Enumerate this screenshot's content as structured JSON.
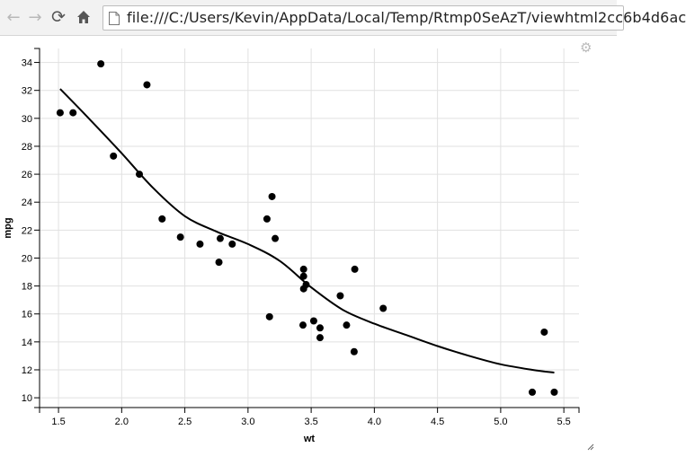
{
  "browser": {
    "url": "file:///C:/Users/Kevin/AppData/Local/Temp/Rtmp0SeAzT/viewhtml2cc6b4d6ac",
    "icons": {
      "back": "back-arrow-icon",
      "forward": "forward-arrow-icon",
      "reload": "reload-icon",
      "home": "home-icon",
      "page": "page-icon",
      "settings": "gear-icon",
      "resize": "resize-grip-icon"
    }
  },
  "chart_data": {
    "type": "scatter",
    "xlabel": "wt",
    "ylabel": "mpg",
    "xlim": [
      1.35,
      5.62
    ],
    "ylim": [
      9.3,
      35.0
    ],
    "x_ticks": [
      "1.5",
      "2.0",
      "2.5",
      "3.0",
      "3.5",
      "4.0",
      "4.5",
      "5.0",
      "5.5"
    ],
    "y_ticks": [
      "10",
      "12",
      "14",
      "16",
      "18",
      "20",
      "22",
      "24",
      "26",
      "28",
      "30",
      "32",
      "34"
    ],
    "grid": true,
    "points": [
      {
        "x": 2.62,
        "y": 21.0
      },
      {
        "x": 2.875,
        "y": 21.0
      },
      {
        "x": 2.32,
        "y": 22.8
      },
      {
        "x": 3.215,
        "y": 21.4
      },
      {
        "x": 3.44,
        "y": 18.7
      },
      {
        "x": 3.46,
        "y": 18.1
      },
      {
        "x": 3.57,
        "y": 14.3
      },
      {
        "x": 3.19,
        "y": 24.4
      },
      {
        "x": 3.15,
        "y": 22.8
      },
      {
        "x": 3.44,
        "y": 19.2
      },
      {
        "x": 3.44,
        "y": 17.8
      },
      {
        "x": 4.07,
        "y": 16.4
      },
      {
        "x": 3.73,
        "y": 17.3
      },
      {
        "x": 3.78,
        "y": 15.2
      },
      {
        "x": 5.25,
        "y": 10.4
      },
      {
        "x": 5.424,
        "y": 10.4
      },
      {
        "x": 5.345,
        "y": 14.7
      },
      {
        "x": 2.2,
        "y": 32.4
      },
      {
        "x": 1.615,
        "y": 30.4
      },
      {
        "x": 1.835,
        "y": 33.9
      },
      {
        "x": 2.465,
        "y": 21.5
      },
      {
        "x": 3.52,
        "y": 15.5
      },
      {
        "x": 3.435,
        "y": 15.2
      },
      {
        "x": 3.84,
        "y": 13.3
      },
      {
        "x": 3.845,
        "y": 19.2
      },
      {
        "x": 1.935,
        "y": 27.3
      },
      {
        "x": 2.14,
        "y": 26.0
      },
      {
        "x": 1.513,
        "y": 30.4
      },
      {
        "x": 3.17,
        "y": 15.8
      },
      {
        "x": 2.77,
        "y": 19.7
      },
      {
        "x": 3.57,
        "y": 15.0
      },
      {
        "x": 2.78,
        "y": 21.4
      }
    ],
    "smooth_line": [
      {
        "x": 1.513,
        "y": 32.1
      },
      {
        "x": 1.75,
        "y": 29.9
      },
      {
        "x": 2.0,
        "y": 27.5
      },
      {
        "x": 2.25,
        "y": 25.0
      },
      {
        "x": 2.5,
        "y": 23.0
      },
      {
        "x": 2.75,
        "y": 21.9
      },
      {
        "x": 3.0,
        "y": 21.0
      },
      {
        "x": 3.25,
        "y": 19.8
      },
      {
        "x": 3.5,
        "y": 17.9
      },
      {
        "x": 3.75,
        "y": 16.3
      },
      {
        "x": 4.0,
        "y": 15.3
      },
      {
        "x": 4.25,
        "y": 14.5
      },
      {
        "x": 4.5,
        "y": 13.7
      },
      {
        "x": 4.75,
        "y": 13.0
      },
      {
        "x": 5.0,
        "y": 12.4
      },
      {
        "x": 5.25,
        "y": 12.0
      },
      {
        "x": 5.424,
        "y": 11.8
      }
    ],
    "colors": {
      "points": "#000000",
      "line": "#000000",
      "grid": "#e1e1e1"
    }
  }
}
